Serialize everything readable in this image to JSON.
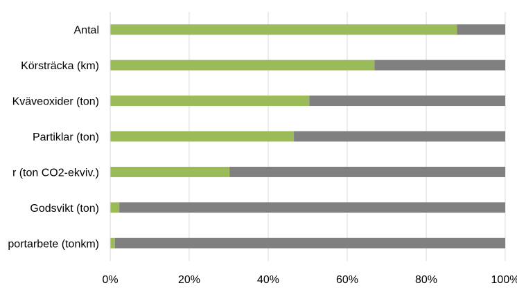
{
  "chart_data": {
    "type": "bar",
    "orientation": "horizontal",
    "stacked": "percent",
    "categories": [
      "Antal",
      "Körsträcka (km)",
      "Kväveoxider (ton)",
      "Partiklar (ton)",
      "r (ton CO2-ekviv.)",
      "Godsvikt (ton)",
      "portarbete (tonkm)"
    ],
    "series": [
      {
        "values": [
          87.8,
          66.9,
          50.4,
          46.5,
          30.2,
          2.3,
          1.2
        ],
        "color": "#9bbb59"
      },
      {
        "values": [
          12.2,
          33.1,
          49.6,
          53.5,
          69.8,
          97.7,
          98.8
        ],
        "color": "#808080"
      }
    ],
    "x_ticks": [
      "0%",
      "20%",
      "40%",
      "60%",
      "80%",
      "100%"
    ],
    "xlim": [
      0,
      100
    ],
    "grid": true,
    "gridline_color": "#d9d9d9",
    "legend": "none",
    "title": "",
    "xlabel": "",
    "ylabel": ""
  }
}
